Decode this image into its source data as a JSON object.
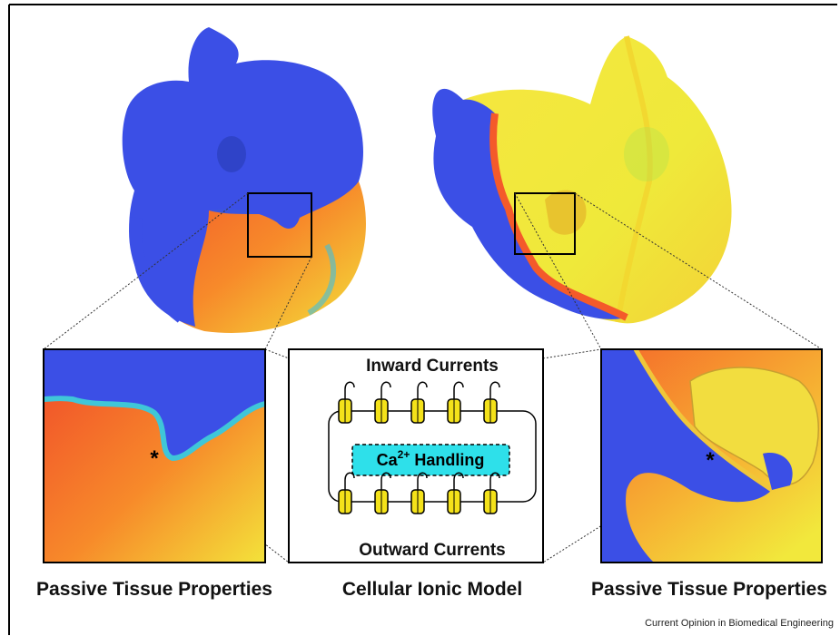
{
  "panels": {
    "left_zoom": {
      "marker": "*",
      "caption": "Passive Tissue Properties"
    },
    "center": {
      "top_label": "Inward Currents",
      "bottom_label": "Outward Currents",
      "handling": {
        "base": "Ca",
        "superscript": "2+",
        "rest": "Handling"
      },
      "caption": "Cellular Ionic Model"
    },
    "right_zoom": {
      "marker": "*",
      "caption": "Passive Tissue Properties"
    }
  },
  "footer": {
    "source": "Current Opinion in Biomedical Engineering"
  }
}
